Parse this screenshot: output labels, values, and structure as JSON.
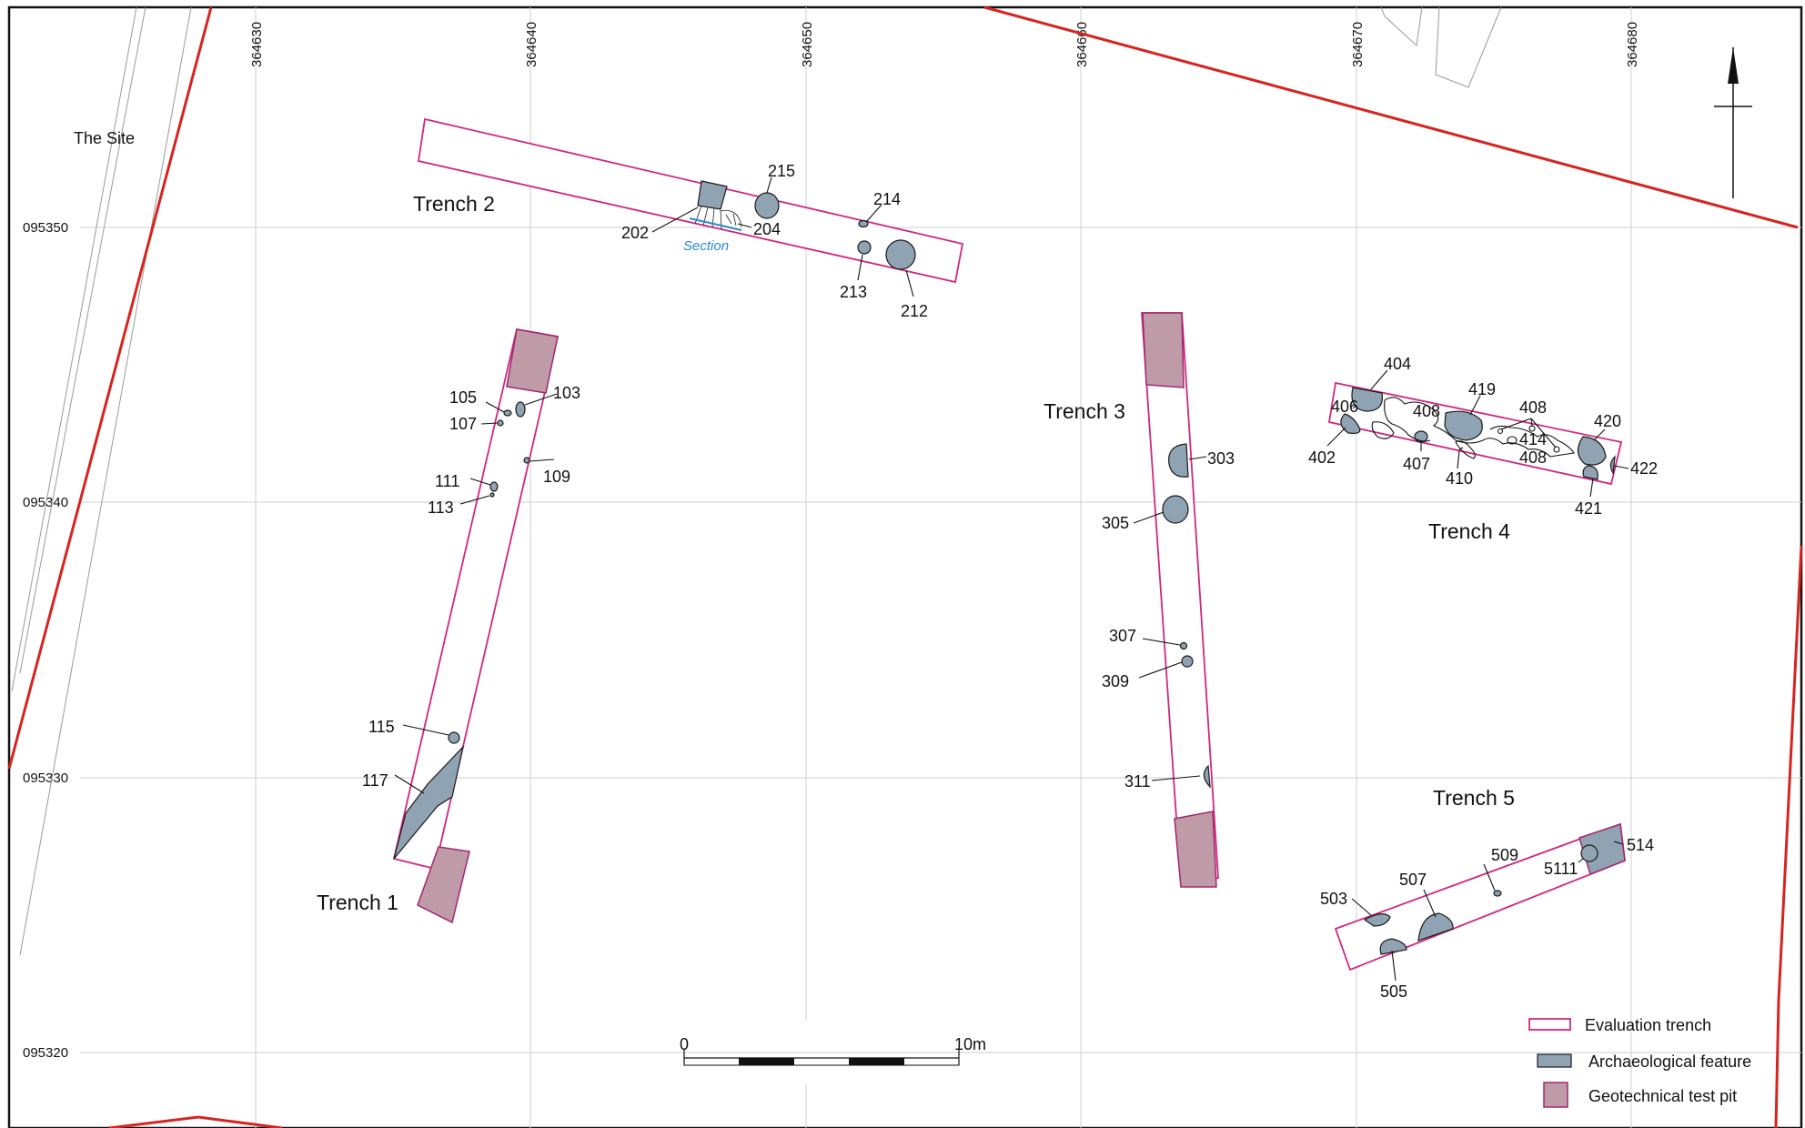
{
  "site_label": "The Site",
  "grid": {
    "easting_labels": [
      "364630",
      "364640",
      "364650",
      "364660",
      "364670",
      "364680"
    ],
    "northing_labels": [
      "095350",
      "095340",
      "095330",
      "095320"
    ]
  },
  "trenches": [
    {
      "id": "trench-1",
      "label": "Trench 1"
    },
    {
      "id": "trench-2",
      "label": "Trench 2"
    },
    {
      "id": "trench-3",
      "label": "Trench 3"
    },
    {
      "id": "trench-4",
      "label": "Trench 4"
    },
    {
      "id": "trench-5",
      "label": "Trench 5"
    }
  ],
  "features": {
    "t1": [
      "103",
      "105",
      "107",
      "109",
      "111",
      "113",
      "115",
      "117"
    ],
    "t2": [
      "202",
      "204",
      "212",
      "213",
      "214",
      "215"
    ],
    "t3": [
      "303",
      "305",
      "307",
      "309",
      "311"
    ],
    "t4": [
      "402",
      "404",
      "406",
      "407",
      "408",
      "408",
      "408",
      "410",
      "414",
      "419",
      "420",
      "421",
      "422"
    ],
    "t5": [
      "503",
      "505",
      "507",
      "509",
      "514",
      "5111"
    ]
  },
  "section_label": "Section",
  "scale_bar": {
    "start": "0",
    "end": "10m"
  },
  "legend": [
    {
      "key": "evaluation-trench",
      "label": "Evaluation trench"
    },
    {
      "key": "archaeological-feature",
      "label": "Archaeological feature"
    },
    {
      "key": "geotechnical-test-pit",
      "label": "Geotechnical test pit"
    }
  ],
  "colors": {
    "trench_outline": "#d1277e",
    "feature_fill": "#8fa3b2",
    "test_pit_fill": "#bf9aa7",
    "site_boundary": "#d62420",
    "section_line": "#2a8ad0"
  }
}
